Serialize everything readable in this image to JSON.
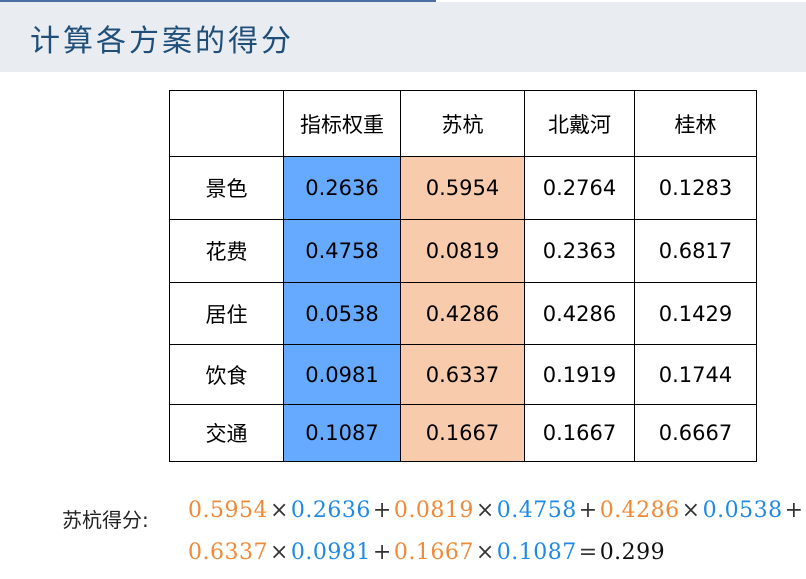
{
  "title": "计算各方案的得分",
  "colors": {
    "weight_column": "#66aaff",
    "suhang_column": "#f8cbad",
    "formula_orange": "#f08a38",
    "formula_blue": "#1f8ae6",
    "title_color": "#1f4e79"
  },
  "table": {
    "headers": [
      "",
      "指标权重",
      "苏杭",
      "北戴河",
      "桂林"
    ],
    "rows": [
      {
        "label": "景色",
        "cells": [
          "0.2636",
          "0.5954",
          "0.2764",
          "0.1283"
        ]
      },
      {
        "label": "花费",
        "cells": [
          "0.4758",
          "0.0819",
          "0.2363",
          "0.6817"
        ]
      },
      {
        "label": "居住",
        "cells": [
          "0.0538",
          "0.4286",
          "0.4286",
          "0.1429"
        ]
      },
      {
        "label": "饮食",
        "cells": [
          "0.0981",
          "0.6337",
          "0.1919",
          "0.1744"
        ]
      },
      {
        "label": "交通",
        "cells": [
          "0.1087",
          "0.1667",
          "0.1667",
          "0.6667"
        ]
      }
    ]
  },
  "formula": {
    "label": "苏杭得分:",
    "times": "×",
    "plus": "+",
    "equals": "=",
    "terms": [
      {
        "a": "0.5954",
        "b": "0.2636"
      },
      {
        "a": "0.0819",
        "b": "0.4758"
      },
      {
        "a": "0.4286",
        "b": "0.0538"
      },
      {
        "a": "0.6337",
        "b": "0.0981"
      },
      {
        "a": "0.1667",
        "b": "0.1087"
      }
    ],
    "result": "0.299"
  }
}
